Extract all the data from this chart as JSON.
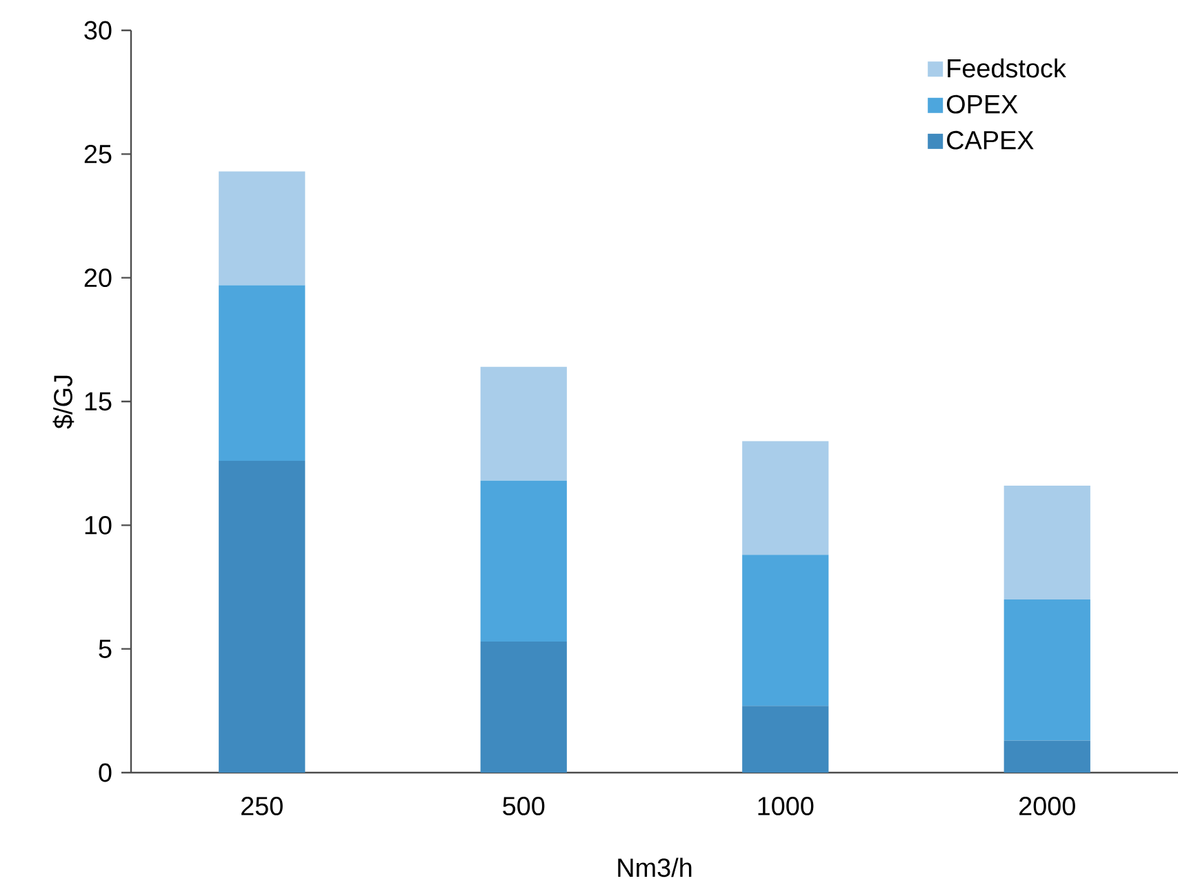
{
  "chart_data": {
    "type": "bar",
    "stacked": true,
    "xlabel": "Nm3/h",
    "ylabel": "$/GJ",
    "categories": [
      "250",
      "500",
      "1000",
      "2000"
    ],
    "series": [
      {
        "name": "CAPEX",
        "color": "#3f8abf",
        "values": [
          12.6,
          5.3,
          2.7,
          1.3
        ]
      },
      {
        "name": "OPEX",
        "color": "#4da6dd",
        "values": [
          7.1,
          6.5,
          6.1,
          5.7
        ]
      },
      {
        "name": "Feedstock",
        "color": "#a9cdea",
        "values": [
          4.6,
          4.6,
          4.6,
          4.6
        ]
      }
    ],
    "ylim": [
      0,
      30
    ],
    "yticks": [
      0,
      5,
      10,
      15,
      20,
      25,
      30
    ],
    "legend": "top right",
    "grid": false
  }
}
